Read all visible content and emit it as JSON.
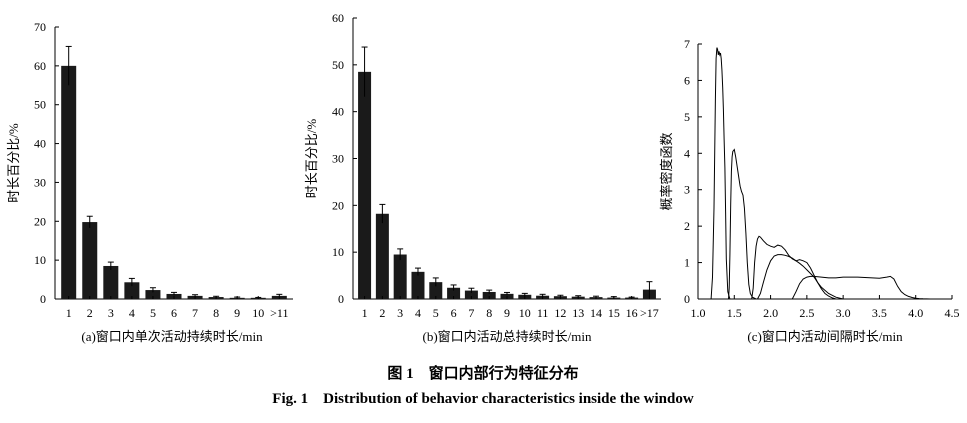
{
  "caption": {
    "cn": "图 1　窗口内部行为特征分布",
    "en": "Fig. 1　Distribution of behavior characteristics inside the window"
  },
  "chart_data": [
    {
      "id": "a",
      "type": "bar",
      "title": "(a)窗口内单次活动持续时长/min",
      "xlabel": "",
      "ylabel": "时长百分比/%",
      "ylim": [
        0,
        70
      ],
      "yticks": [
        0,
        10,
        20,
        30,
        40,
        50,
        60,
        70
      ],
      "categories": [
        "1",
        "2",
        "3",
        "4",
        "5",
        "6",
        "7",
        "8",
        "9",
        "10",
        ">11"
      ],
      "values": [
        60,
        19.8,
        8.5,
        4.3,
        2.3,
        1.3,
        0.8,
        0.5,
        0.3,
        0.3,
        0.8
      ],
      "errors": [
        5,
        1.5,
        1.0,
        1.0,
        0.6,
        0.4,
        0.3,
        0.2,
        0.2,
        0.1,
        0.4
      ],
      "grid": false
    },
    {
      "id": "b",
      "type": "bar",
      "title": "(b)窗口内活动总持续时长/min",
      "xlabel": "",
      "ylabel": "时长百分比/%",
      "ylim": [
        0,
        60
      ],
      "yticks": [
        0,
        10,
        20,
        30,
        40,
        50,
        60
      ],
      "categories": [
        "1",
        "2",
        "3",
        "4",
        "5",
        "6",
        "7",
        "8",
        "9",
        "10",
        "11",
        "12",
        "13",
        "14",
        "15",
        "16",
        ">17"
      ],
      "values": [
        48.5,
        18.2,
        9.5,
        5.8,
        3.6,
        2.4,
        1.8,
        1.5,
        1.1,
        0.9,
        0.7,
        0.6,
        0.5,
        0.4,
        0.3,
        0.3,
        2.0
      ],
      "errors": [
        5.3,
        2.0,
        1.2,
        0.8,
        0.9,
        0.6,
        0.5,
        0.4,
        0.3,
        0.3,
        0.3,
        0.2,
        0.2,
        0.2,
        0.2,
        0.1,
        1.7
      ],
      "grid": false
    },
    {
      "id": "c",
      "type": "line",
      "title": "(c)窗口内活动间隔时长/min",
      "xlabel": "",
      "ylabel": "概率密度函数",
      "xlim": [
        1.0,
        4.5
      ],
      "ylim": [
        0,
        7
      ],
      "xticks": [
        1.0,
        1.5,
        2.0,
        2.5,
        3.0,
        3.5,
        4.0,
        4.5
      ],
      "xtick_labels": [
        "1.0",
        "1.5",
        "2.0",
        "2.5",
        "3.0",
        "3.5",
        "4.0",
        "4.5"
      ],
      "yticks": [
        0,
        1,
        2,
        3,
        4,
        5,
        6,
        7
      ],
      "grid": false,
      "series": [
        {
          "x": [
            1.18,
            1.2,
            1.22,
            1.24,
            1.25,
            1.26,
            1.27,
            1.28,
            1.29,
            1.3,
            1.31,
            1.32,
            1.33,
            1.34,
            1.35,
            1.36,
            1.37,
            1.38,
            1.39,
            1.41,
            1.44
          ],
          "y": [
            0,
            0.6,
            2.5,
            5.5,
            6.6,
            6.9,
            6.85,
            6.7,
            6.8,
            6.7,
            6.75,
            6.6,
            6.3,
            5.8,
            5.2,
            4.4,
            3.6,
            2.4,
            1.1,
            0.2,
            0
          ]
        },
        {
          "x": [
            1.42,
            1.43,
            1.44,
            1.45,
            1.46,
            1.47,
            1.48,
            1.5,
            1.52,
            1.55,
            1.58,
            1.6,
            1.62,
            1.64,
            1.66,
            1.68,
            1.7,
            1.72,
            1.75,
            1.8
          ],
          "y": [
            0,
            0.3,
            1.2,
            2.6,
            3.5,
            3.9,
            4.05,
            4.1,
            3.9,
            3.5,
            3.1,
            2.95,
            2.85,
            2.5,
            1.8,
            1.0,
            0.4,
            0.15,
            0.05,
            0
          ]
        },
        {
          "x": [
            1.74,
            1.76,
            1.78,
            1.8,
            1.82,
            1.84,
            1.86,
            1.9,
            1.95,
            2.0,
            2.05,
            2.1,
            2.15,
            2.2,
            2.25,
            2.3,
            2.35,
            2.4,
            2.45,
            2.5,
            2.55,
            2.6,
            2.65,
            2.7,
            2.75,
            2.8,
            2.85,
            2.9
          ],
          "y": [
            0,
            0.3,
            1.0,
            1.45,
            1.65,
            1.72,
            1.7,
            1.6,
            1.5,
            1.45,
            1.42,
            1.48,
            1.45,
            1.35,
            1.2,
            1.1,
            1.05,
            1.08,
            1.05,
            1.0,
            0.85,
            0.65,
            0.45,
            0.28,
            0.15,
            0.08,
            0.03,
            0
          ]
        },
        {
          "x": [
            1.82,
            1.86,
            1.9,
            1.95,
            2.0,
            2.05,
            2.1,
            2.15,
            2.2,
            2.25,
            2.3,
            2.35,
            2.4,
            2.45,
            2.5,
            2.55,
            2.6,
            2.65,
            2.7,
            2.8,
            2.9,
            3.0
          ],
          "y": [
            0,
            0.15,
            0.45,
            0.8,
            1.05,
            1.18,
            1.22,
            1.22,
            1.2,
            1.17,
            1.12,
            1.05,
            0.98,
            0.9,
            0.8,
            0.7,
            0.6,
            0.45,
            0.32,
            0.15,
            0.05,
            0
          ]
        },
        {
          "x": [
            2.3,
            2.35,
            2.4,
            2.45,
            2.5,
            2.55,
            2.6,
            2.7,
            2.8,
            2.9,
            3.0,
            3.1,
            3.2,
            3.3,
            3.4,
            3.5,
            3.6,
            3.65,
            3.7,
            3.75,
            3.8,
            3.85,
            3.9,
            3.95,
            4.0,
            4.05,
            4.1,
            4.2
          ],
          "y": [
            0,
            0.2,
            0.42,
            0.55,
            0.6,
            0.62,
            0.62,
            0.6,
            0.58,
            0.58,
            0.6,
            0.6,
            0.6,
            0.59,
            0.58,
            0.57,
            0.6,
            0.62,
            0.55,
            0.35,
            0.2,
            0.12,
            0.07,
            0.04,
            0.02,
            0.01,
            0.005,
            0
          ]
        }
      ]
    }
  ]
}
